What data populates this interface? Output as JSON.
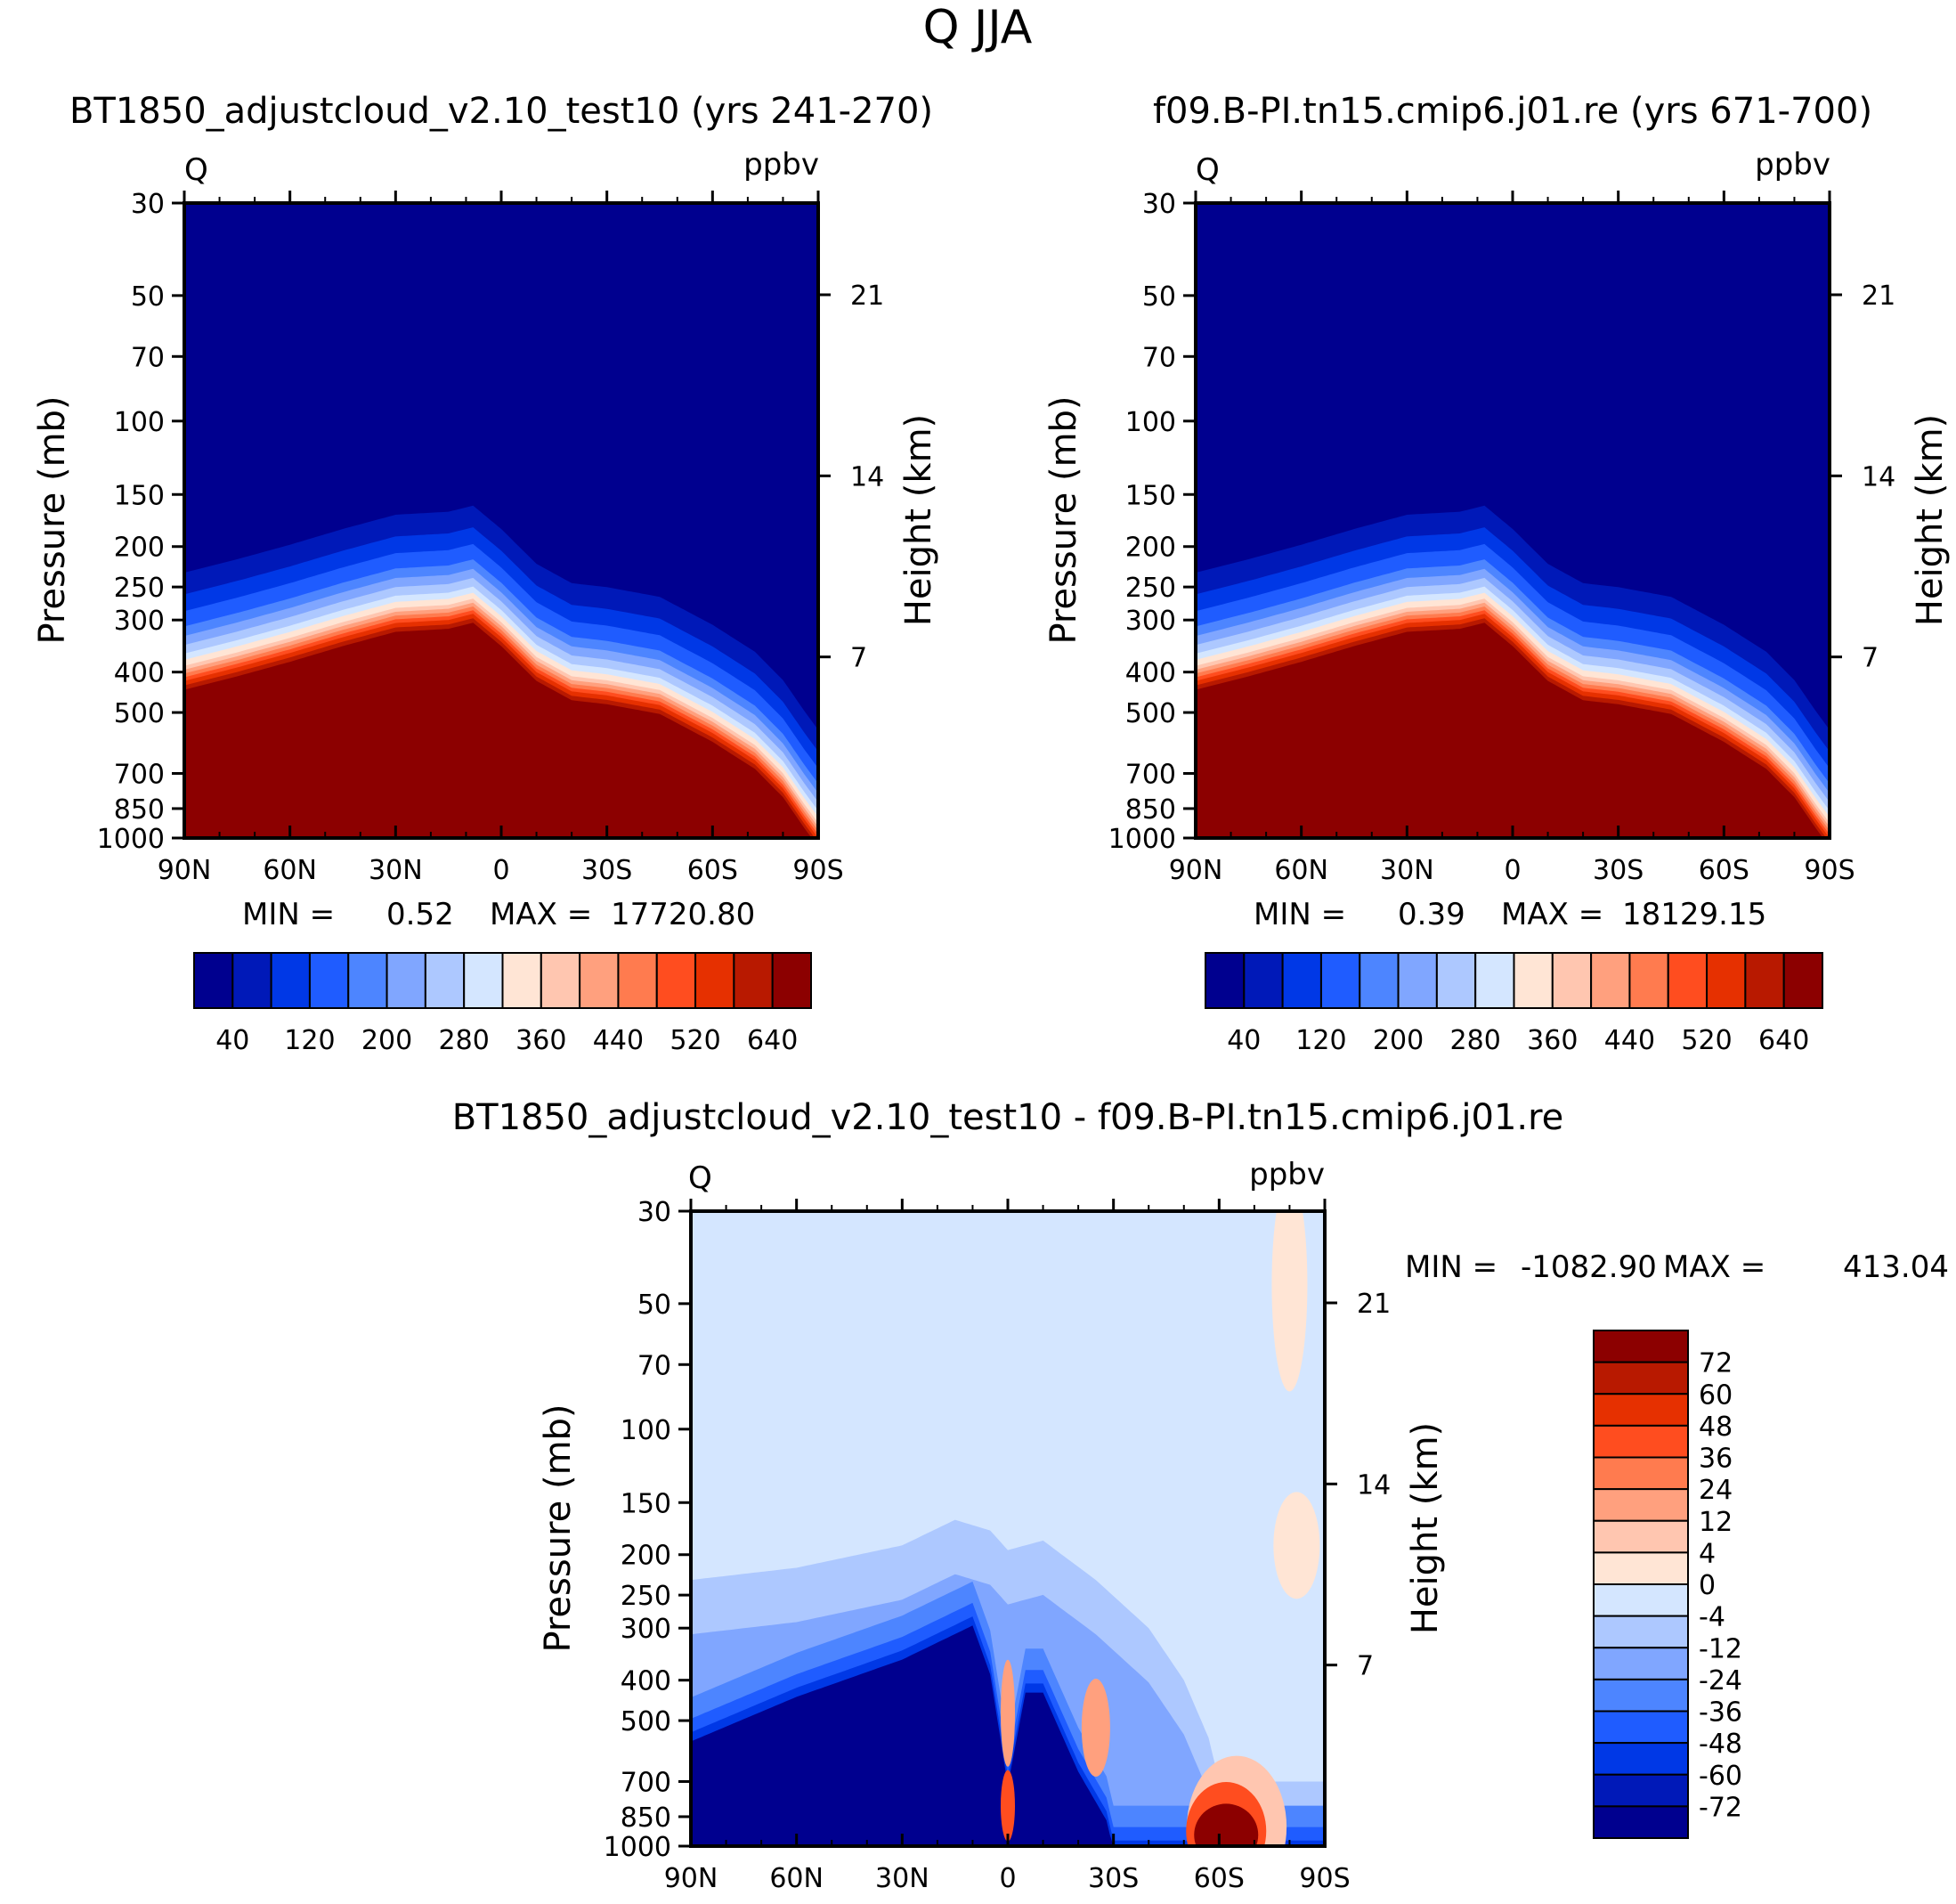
{
  "figure_title": "Q  JJA",
  "chart_data": [
    {
      "type": "contour",
      "title": "BT1850_adjustcloud_v2.10_test10 (yrs 241-270)",
      "variable": "Q",
      "units": "ppbv",
      "xlabel": "",
      "ylabel": "Pressure (mb)",
      "ylabel_right": "Height (km)",
      "x_ticks": [
        "90N",
        "60N",
        "30N",
        "0",
        "30S",
        "60S",
        "90S"
      ],
      "x_range": [
        90,
        -90
      ],
      "y_ticks": [
        30,
        50,
        70,
        100,
        150,
        200,
        250,
        300,
        400,
        500,
        700,
        850,
        1000
      ],
      "y_range": [
        30,
        1000
      ],
      "height_ticks": [
        21,
        14,
        7
      ],
      "stats": {
        "min_label": "MIN =",
        "min": "0.52",
        "max_label": "MAX =",
        "max": "17720.80"
      },
      "colorbar_labels": [
        "40",
        "120",
        "200",
        "280",
        "360",
        "440",
        "520",
        "640"
      ],
      "level_transition_pressure": [
        [
          90,
          420
        ],
        [
          75,
          390
        ],
        [
          60,
          360
        ],
        [
          45,
          330
        ],
        [
          30,
          305
        ],
        [
          15,
          300
        ],
        [
          8,
          290
        ],
        [
          0,
          330
        ],
        [
          -10,
          400
        ],
        [
          -20,
          445
        ],
        [
          -30,
          455
        ],
        [
          -45,
          480
        ],
        [
          -60,
          560
        ],
        [
          -72,
          650
        ],
        [
          -80,
          760
        ],
        [
          -86,
          900
        ],
        [
          -90,
          1000
        ]
      ]
    },
    {
      "type": "contour",
      "title": "f09.B-PI.tn15.cmip6.j01.re (yrs 671-700)",
      "variable": "Q",
      "units": "ppbv",
      "xlabel": "",
      "ylabel": "Pressure (mb)",
      "ylabel_right": "Height (km)",
      "x_ticks": [
        "90N",
        "60N",
        "30N",
        "0",
        "30S",
        "60S",
        "90S"
      ],
      "x_range": [
        90,
        -90
      ],
      "y_ticks": [
        30,
        50,
        70,
        100,
        150,
        200,
        250,
        300,
        400,
        500,
        700,
        850,
        1000
      ],
      "y_range": [
        30,
        1000
      ],
      "height_ticks": [
        21,
        14,
        7
      ],
      "stats": {
        "min_label": "MIN =",
        "min": "0.39",
        "max_label": "MAX =",
        "max": "18129.15"
      },
      "colorbar_labels": [
        "40",
        "120",
        "200",
        "280",
        "360",
        "440",
        "520",
        "640"
      ],
      "level_transition_pressure": [
        [
          90,
          420
        ],
        [
          75,
          390
        ],
        [
          60,
          360
        ],
        [
          45,
          330
        ],
        [
          30,
          305
        ],
        [
          15,
          300
        ],
        [
          8,
          290
        ],
        [
          0,
          330
        ],
        [
          -10,
          400
        ],
        [
          -20,
          445
        ],
        [
          -30,
          455
        ],
        [
          -45,
          480
        ],
        [
          -60,
          560
        ],
        [
          -72,
          650
        ],
        [
          -80,
          760
        ],
        [
          -86,
          900
        ],
        [
          -90,
          1000
        ]
      ]
    },
    {
      "type": "contour",
      "title": "BT1850_adjustcloud_v2.10_test10 - f09.B-PI.tn15.cmip6.j01.re",
      "variable": "Q",
      "units": "ppbv",
      "xlabel": "",
      "ylabel": "Pressure (mb)",
      "ylabel_right": "Height (km)",
      "x_ticks": [
        "90N",
        "60N",
        "30N",
        "0",
        "30S",
        "60S",
        "90S"
      ],
      "x_range": [
        90,
        -90
      ],
      "y_ticks": [
        30,
        50,
        70,
        100,
        150,
        200,
        250,
        300,
        400,
        500,
        700,
        850,
        1000
      ],
      "y_range": [
        30,
        1000
      ],
      "height_ticks": [
        21,
        14,
        7
      ],
      "stats": {
        "min_label": "MIN =",
        "min": "-1082.90",
        "max_label": "MAX =",
        "max": "413.04"
      },
      "colorbar_labels": [
        "72",
        "60",
        "48",
        "36",
        "24",
        "12",
        "4",
        "0",
        "-4",
        "-12",
        "-24",
        "-36",
        "-48",
        "-60",
        "-72"
      ],
      "background_range": "-4 to 0",
      "negative_region_top_pressure": [
        [
          90,
          230
        ],
        [
          60,
          215
        ],
        [
          30,
          190
        ],
        [
          15,
          165
        ],
        [
          5,
          175
        ],
        [
          0,
          195
        ],
        [
          -10,
          185
        ],
        [
          -25,
          230
        ],
        [
          -40,
          300
        ],
        [
          -50,
          400
        ],
        [
          -57,
          550
        ],
        [
          -60,
          700
        ]
      ],
      "strong_negative_top_pressure": [
        [
          90,
          550
        ],
        [
          60,
          430
        ],
        [
          30,
          350
        ],
        [
          10,
          290
        ],
        [
          5,
          380
        ],
        [
          0,
          700
        ],
        [
          -5,
          420
        ],
        [
          -10,
          420
        ],
        [
          -20,
          650
        ],
        [
          -28,
          850
        ],
        [
          -30,
          1000
        ]
      ]
    }
  ],
  "colors": {
    "seq": [
      "#00008f",
      "#0019b8",
      "#0038e6",
      "#1f5cff",
      "#4d85ff",
      "#80a6ff",
      "#adc8ff",
      "#d4e6ff",
      "#ffe5d5",
      "#ffc6b0",
      "#ffa07e",
      "#ff7b4f",
      "#ff4d1f",
      "#e63000",
      "#b81900",
      "#8c0000"
    ],
    "div": [
      "#8c0000",
      "#b81900",
      "#e63000",
      "#ff4d1f",
      "#ff7b4f",
      "#ffa07e",
      "#ffc6b0",
      "#ffe5d5",
      "#d4e6ff",
      "#adc8ff",
      "#80a6ff",
      "#4d85ff",
      "#1f5cff",
      "#0038e6",
      "#0019b8",
      "#00008f"
    ]
  }
}
